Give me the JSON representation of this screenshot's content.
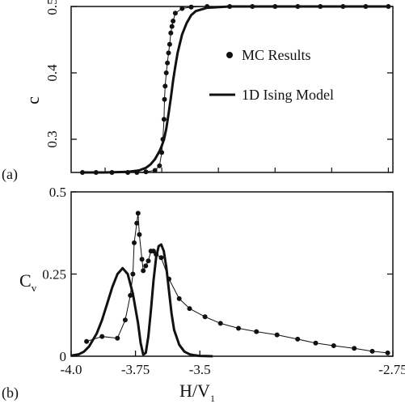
{
  "chart_data": [
    {
      "id": "a",
      "type": "scatter",
      "panel_label": "(a)",
      "ylabel": "c",
      "xlim": [
        -4.15,
        -2.73
      ],
      "ylim": [
        0.25,
        0.5
      ],
      "yticks": [
        0.3,
        0.4,
        0.5
      ],
      "ytick_labels": [
        "0.3",
        "0.4",
        "0.5"
      ],
      "legend": {
        "placement": "right",
        "entries": [
          "MC Results",
          "1D Ising Model"
        ]
      },
      "series": [
        {
          "name": "MC Results",
          "style": "points-with-line",
          "x": [
            -4.1,
            -4.04,
            -3.97,
            -3.9,
            -3.86,
            -3.82,
            -3.78,
            -3.76,
            -3.75,
            -3.745,
            -3.74,
            -3.738,
            -3.735,
            -3.73,
            -3.725,
            -3.72,
            -3.715,
            -3.71,
            -3.705,
            -3.7,
            -3.69,
            -3.66,
            -3.62,
            -3.55,
            -3.45,
            -3.35,
            -3.25,
            -3.15,
            -3.05,
            -2.95,
            -2.85,
            -2.75
          ],
          "y": [
            0.25,
            0.25,
            0.25,
            0.25,
            0.25,
            0.251,
            0.253,
            0.26,
            0.28,
            0.3,
            0.33,
            0.36,
            0.38,
            0.4,
            0.415,
            0.43,
            0.443,
            0.46,
            0.47,
            0.478,
            0.49,
            0.497,
            0.499,
            0.5,
            0.5,
            0.5,
            0.5,
            0.5,
            0.5,
            0.5,
            0.5,
            0.5
          ]
        },
        {
          "name": "1D Ising Model",
          "style": "thick-line",
          "x": [
            -4.1,
            -4.0,
            -3.9,
            -3.85,
            -3.82,
            -3.8,
            -3.78,
            -3.76,
            -3.75,
            -3.74,
            -3.73,
            -3.72,
            -3.71,
            -3.7,
            -3.69,
            -3.68,
            -3.66,
            -3.64,
            -3.62,
            -3.6,
            -3.55,
            -3.45,
            -3.3,
            -3.1,
            -2.9,
            -2.75
          ],
          "y": [
            0.25,
            0.25,
            0.251,
            0.253,
            0.257,
            0.262,
            0.27,
            0.282,
            0.29,
            0.3,
            0.316,
            0.338,
            0.362,
            0.388,
            0.41,
            0.43,
            0.458,
            0.475,
            0.487,
            0.493,
            0.498,
            0.5,
            0.5,
            0.5,
            0.5,
            0.5
          ]
        }
      ]
    },
    {
      "id": "b",
      "type": "line",
      "panel_label": "(b)",
      "ylabel": "Cv",
      "xlabel": "H/V1",
      "xlim": [
        -4.0,
        -2.75
      ],
      "ylim": [
        0,
        0.5
      ],
      "xticks": [
        -4.0,
        -3.75,
        -3.5,
        -2.75
      ],
      "xtick_labels": [
        "-4.0",
        "-3.75",
        "-3.5",
        "-2.75"
      ],
      "yticks": [
        0,
        0.25,
        0.5
      ],
      "ytick_labels": [
        "0",
        "0.25",
        "0.5"
      ],
      "series": [
        {
          "name": "MC Results",
          "style": "points-with-line",
          "x": [
            -3.94,
            -3.88,
            -3.82,
            -3.79,
            -3.77,
            -3.76,
            -3.755,
            -3.745,
            -3.74,
            -3.735,
            -3.725,
            -3.72,
            -3.71,
            -3.7,
            -3.69,
            -3.68,
            -3.67,
            -3.65,
            -3.62,
            -3.58,
            -3.54,
            -3.48,
            -3.42,
            -3.35,
            -3.28,
            -3.2,
            -3.12,
            -3.05,
            -2.98,
            -2.9,
            -2.83,
            -2.77
          ],
          "y": [
            0.045,
            0.06,
            0.055,
            0.11,
            0.185,
            0.25,
            0.345,
            0.405,
            0.435,
            0.37,
            0.295,
            0.26,
            0.275,
            0.29,
            0.32,
            0.32,
            0.31,
            0.3,
            0.235,
            0.175,
            0.145,
            0.12,
            0.1,
            0.085,
            0.075,
            0.065,
            0.052,
            0.04,
            0.032,
            0.024,
            0.015,
            0.01
          ]
        },
        {
          "name": "1D Ising Model",
          "style": "thick-line",
          "x": [
            -4.0,
            -3.97,
            -3.95,
            -3.93,
            -3.9,
            -3.88,
            -3.86,
            -3.84,
            -3.82,
            -3.8,
            -3.78,
            -3.76,
            -3.74,
            -3.73,
            -3.72,
            -3.71,
            -3.7,
            -3.69,
            -3.68,
            -3.67,
            -3.66,
            -3.65,
            -3.64,
            -3.63,
            -3.62,
            -3.61,
            -3.6,
            -3.58,
            -3.56,
            -3.54,
            -3.52,
            -3.5,
            -3.48,
            -3.45
          ],
          "y": [
            0.002,
            0.006,
            0.014,
            0.03,
            0.07,
            0.11,
            0.16,
            0.21,
            0.25,
            0.268,
            0.25,
            0.19,
            0.1,
            0.04,
            0.005,
            0.01,
            0.06,
            0.14,
            0.23,
            0.3,
            0.335,
            0.34,
            0.32,
            0.27,
            0.2,
            0.13,
            0.08,
            0.035,
            0.014,
            0.006,
            0.003,
            0.001,
            0.0005,
            0.0
          ]
        }
      ]
    }
  ]
}
